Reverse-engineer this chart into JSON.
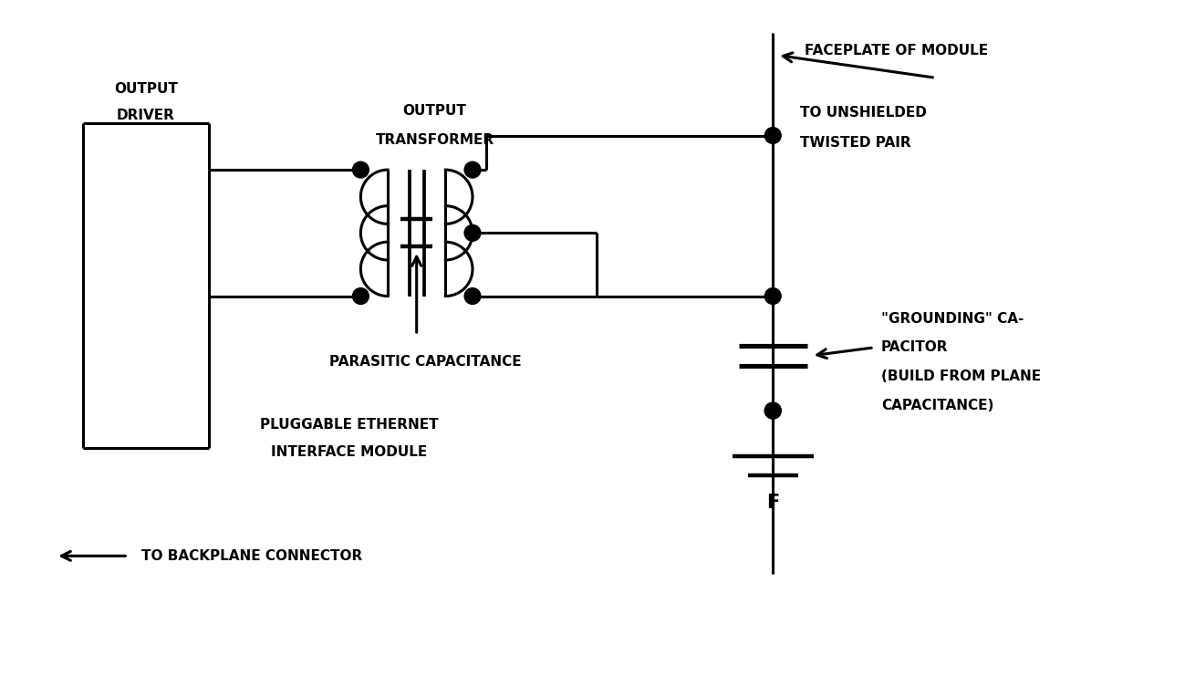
{
  "bg_color": "#ffffff",
  "line_color": "#000000",
  "lw": 2.2,
  "dot_r": 0.09,
  "figsize": [
    12.99,
    7.42
  ],
  "labels": {
    "output_driver": [
      "OUTPUT",
      "DRIVER"
    ],
    "output_transformer": [
      "OUTPUT",
      "TRANSFORMER"
    ],
    "parasitic_cap": "PARASITIC CAPACITANCE",
    "pluggable": [
      "PLUGGABLE ETHERNET",
      "INTERFACE MODULE"
    ],
    "faceplate": "FACEPLATE OF MODULE",
    "to_twisted": [
      "TO UNSHIELDED",
      "TWISTED PAIR"
    ],
    "grounding_cap": [
      "\"GROUNDING\" CA-",
      "PACITOR",
      "(BUILD FROM PLANE",
      "CAPACITANCE)"
    ],
    "to_backplane": "TO BACKPLANE CONNECTOR"
  },
  "fontsize": 11
}
